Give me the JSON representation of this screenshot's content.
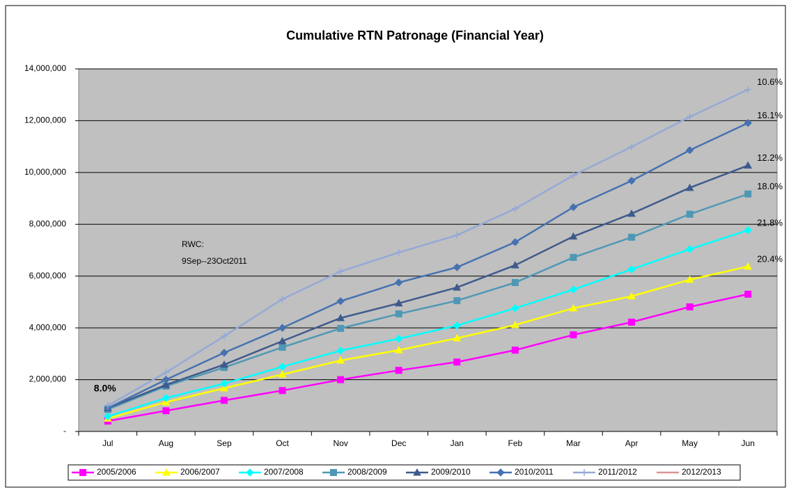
{
  "chart_data": {
    "type": "line",
    "title": "Cumulative RTN Patronage (Financial Year)",
    "categories": [
      "Jul",
      "Aug",
      "Sep",
      "Oct",
      "Nov",
      "Dec",
      "Jan",
      "Feb",
      "Mar",
      "Apr",
      "May",
      "Jun"
    ],
    "ylim": [
      0,
      14000000
    ],
    "yticks": [
      {
        "value": 0,
        "label": "-"
      },
      {
        "value": 2000000,
        "label": "2,000,000"
      },
      {
        "value": 4000000,
        "label": "4,000,000"
      },
      {
        "value": 6000000,
        "label": "6,000,000"
      },
      {
        "value": 8000000,
        "label": "8,000,000"
      },
      {
        "value": 10000000,
        "label": "10,000,000"
      },
      {
        "value": 12000000,
        "label": "12,000,000"
      },
      {
        "value": 14000000,
        "label": "14,000,000"
      }
    ],
    "grid": true,
    "legend": "bottom",
    "annotations": [
      "RWC:",
      "9Sep--23Oct2011"
    ],
    "series": [
      {
        "name": "2005/2006",
        "color": "#ff00ff",
        "marker": "square",
        "values": [
          400000,
          800000,
          1200000,
          1580000,
          2000000,
          2360000,
          2680000,
          3140000,
          3730000,
          4220000,
          4810000,
          5300000
        ]
      },
      {
        "name": "2006/2007",
        "color": "#ffff00",
        "marker": "triangle",
        "end_label": "20.4%",
        "values": [
          500000,
          1130000,
          1670000,
          2200000,
          2740000,
          3140000,
          3600000,
          4110000,
          4760000,
          5220000,
          5860000,
          6370000
        ]
      },
      {
        "name": "2007/2008",
        "color": "#00ffff",
        "marker": "diamond",
        "end_label": "21.8%",
        "values": [
          580000,
          1290000,
          1850000,
          2500000,
          3120000,
          3580000,
          4090000,
          4760000,
          5480000,
          6260000,
          7040000,
          7770000
        ]
      },
      {
        "name": "2008/2009",
        "color": "#4f98b5",
        "marker": "square",
        "end_label": "18.0%",
        "values": [
          850000,
          1750000,
          2470000,
          3250000,
          3980000,
          4540000,
          5050000,
          5750000,
          6720000,
          7500000,
          8390000,
          9170000
        ]
      },
      {
        "name": "2009/2010",
        "color": "#3f5a8c",
        "marker": "triangle",
        "end_label": "12.2%",
        "values": [
          900000,
          1800000,
          2580000,
          3490000,
          4380000,
          4950000,
          5560000,
          6420000,
          7530000,
          8410000,
          9410000,
          10270000
        ]
      },
      {
        "name": "2010/2011",
        "color": "#4672b0",
        "marker": "diamond",
        "end_label": "16.1%",
        "values": [
          900000,
          2000000,
          3040000,
          4000000,
          5030000,
          5750000,
          6340000,
          7310000,
          8660000,
          9680000,
          10860000,
          11910000
        ]
      },
      {
        "name": "2011/2012",
        "color": "#95a9d6",
        "marker": "plus",
        "end_label": "10.6%",
        "values": [
          1000000,
          2280000,
          3680000,
          5110000,
          6180000,
          6910000,
          7580000,
          8600000,
          9890000,
          10990000,
          12150000,
          13200000
        ]
      },
      {
        "name": "2012/2013",
        "color": "#d99594",
        "marker": "none",
        "end_label": "8.0%",
        "values": [
          1050000,
          null,
          null,
          null,
          null,
          null,
          null,
          null,
          null,
          null,
          null,
          null
        ]
      }
    ]
  }
}
